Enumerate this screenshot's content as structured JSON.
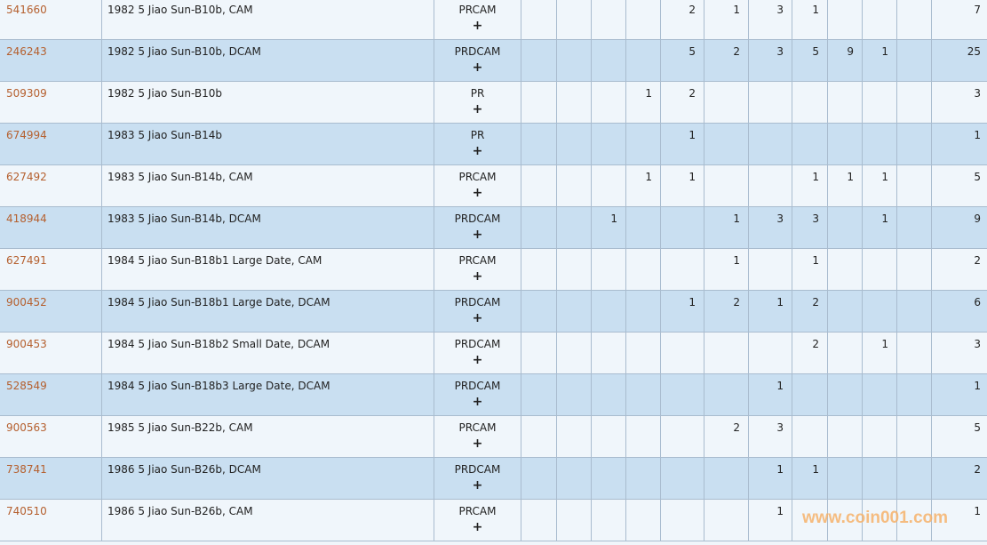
{
  "rows": [
    {
      "id": "541660",
      "desc": "1982 5 Jiao Sun-B10b, CAM",
      "designation": "PRCAM",
      "add": "+",
      "counts": [
        "",
        "",
        "",
        "",
        "2",
        "1",
        "3",
        "1",
        "",
        "",
        "",
        "7"
      ]
    },
    {
      "id": "246243",
      "desc": "1982 5 Jiao Sun-B10b, DCAM",
      "designation": "PRDCAM",
      "add": "+",
      "counts": [
        "",
        "",
        "",
        "",
        "5",
        "2",
        "3",
        "5",
        "9",
        "1",
        "",
        "25"
      ]
    },
    {
      "id": "509309",
      "desc": "1982 5 Jiao Sun-B10b",
      "designation": "PR",
      "add": "+",
      "counts": [
        "",
        "",
        "",
        "1",
        "2",
        "",
        "",
        "",
        "",
        "",
        "",
        "3"
      ]
    },
    {
      "id": "674994",
      "desc": "1983 5 Jiao Sun-B14b",
      "designation": "PR",
      "add": "+",
      "counts": [
        "",
        "",
        "",
        "",
        "1",
        "",
        "",
        "",
        "",
        "",
        "",
        "1"
      ]
    },
    {
      "id": "627492",
      "desc": "1983 5 Jiao Sun-B14b, CAM",
      "designation": "PRCAM",
      "add": "+",
      "counts": [
        "",
        "",
        "",
        "1",
        "1",
        "",
        "",
        "1",
        "1",
        "1",
        "",
        "5"
      ]
    },
    {
      "id": "418944",
      "desc": "1983 5 Jiao Sun-B14b, DCAM",
      "designation": "PRDCAM",
      "add": "+",
      "counts": [
        "",
        "",
        "1",
        "",
        "",
        "1",
        "3",
        "3",
        "",
        "1",
        "",
        "9"
      ]
    },
    {
      "id": "627491",
      "desc": "1984 5 Jiao Sun-B18b1 Large Date, CAM",
      "designation": "PRCAM",
      "add": "+",
      "counts": [
        "",
        "",
        "",
        "",
        "",
        "1",
        "",
        "1",
        "",
        "",
        "",
        "2"
      ]
    },
    {
      "id": "900452",
      "desc": "1984 5 Jiao Sun-B18b1 Large Date, DCAM",
      "designation": "PRDCAM",
      "add": "+",
      "counts": [
        "",
        "",
        "",
        "",
        "1",
        "2",
        "1",
        "2",
        "",
        "",
        "",
        "6"
      ]
    },
    {
      "id": "900453",
      "desc": "1984 5 Jiao Sun-B18b2 Small Date, DCAM",
      "designation": "PRDCAM",
      "add": "+",
      "counts": [
        "",
        "",
        "",
        "",
        "",
        "",
        "",
        "2",
        "",
        "1",
        "",
        "3"
      ]
    },
    {
      "id": "528549",
      "desc": "1984 5 Jiao Sun-B18b3 Large Date, DCAM",
      "designation": "PRDCAM",
      "add": "+",
      "counts": [
        "",
        "",
        "",
        "",
        "",
        "",
        "1",
        "",
        "",
        "",
        "",
        "1"
      ]
    },
    {
      "id": "900563",
      "desc": "1985 5 Jiao Sun-B22b, CAM",
      "designation": "PRCAM",
      "add": "+",
      "counts": [
        "",
        "",
        "",
        "",
        "",
        "2",
        "3",
        "",
        "",
        "",
        "",
        "5"
      ]
    },
    {
      "id": "738741",
      "desc": "1986 5 Jiao Sun-B26b, DCAM",
      "designation": "PRDCAM",
      "add": "+",
      "counts": [
        "",
        "",
        "",
        "",
        "",
        "",
        "1",
        "1",
        "",
        "",
        "",
        "2"
      ]
    },
    {
      "id": "740510",
      "desc": "1986 5 Jiao Sun-B26b, CAM",
      "designation": "PRCAM",
      "add": "+",
      "counts": [
        "",
        "",
        "",
        "",
        "",
        "",
        "1",
        "",
        "",
        "",
        "",
        "1"
      ]
    }
  ],
  "watermark": "www.coin001.com",
  "colors": {
    "row_odd": "#f0f6fb",
    "row_even": "#c9dff1",
    "link": "#b5602f",
    "border": "#a9bccf"
  }
}
